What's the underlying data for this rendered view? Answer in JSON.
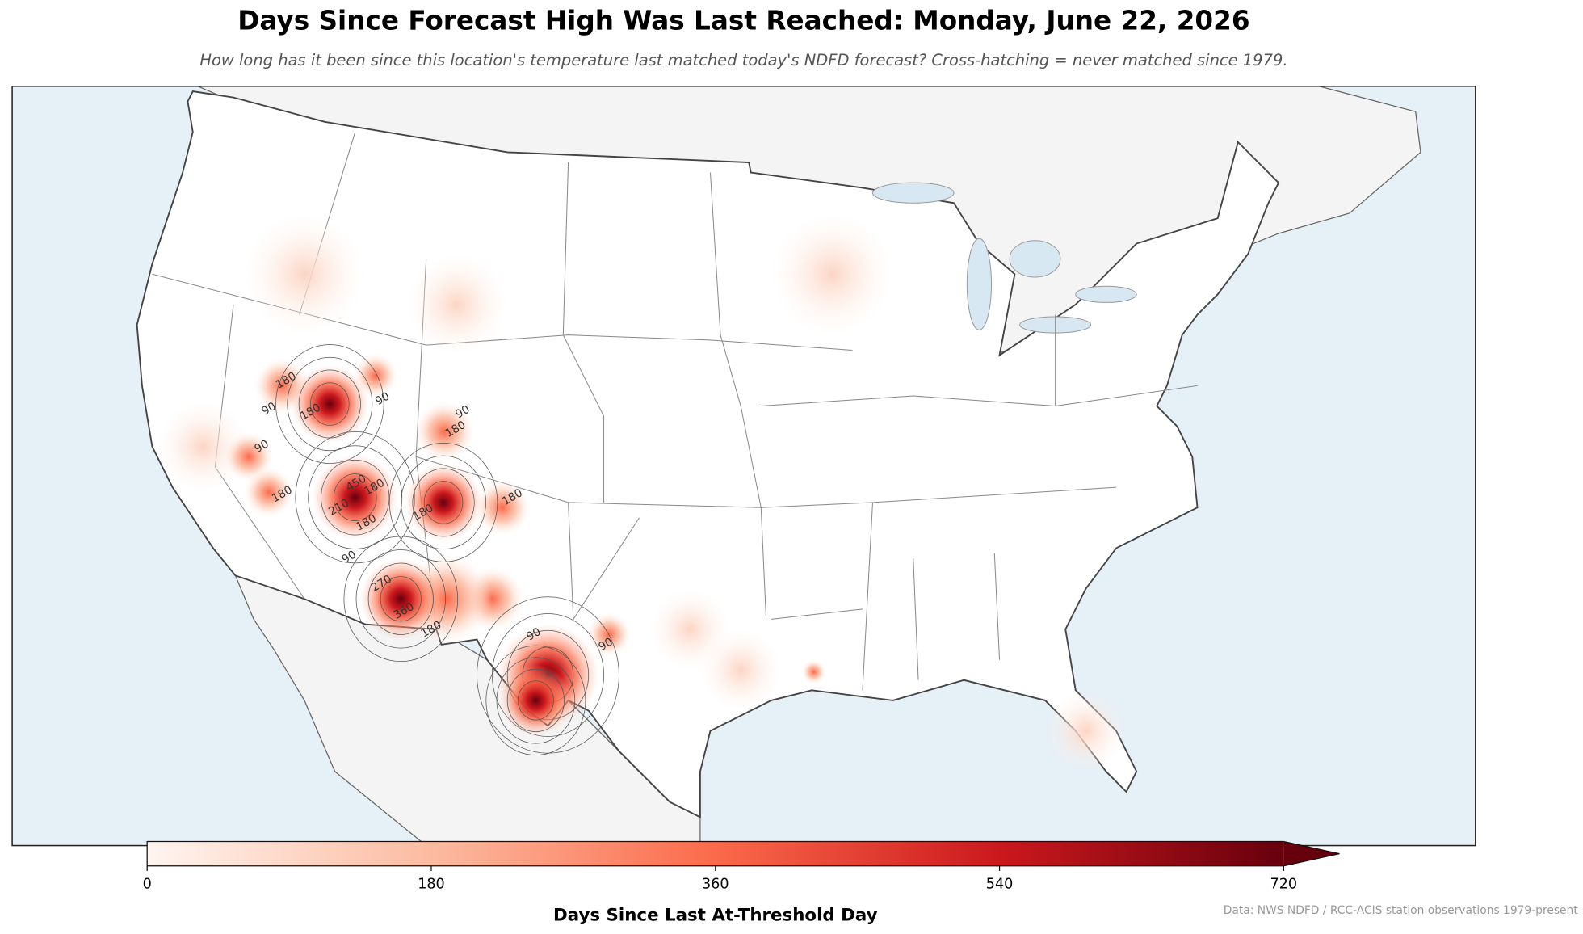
{
  "title": "Days Since Forecast High Was Last Reached: Monday, June 22, 2026",
  "subtitle": "How long has it been since this location's temperature last matched today's NDFD forecast? Cross-hatching = never matched since 1979.",
  "map": {
    "contour_labels": [
      "180",
      "90",
      "180",
      "90",
      "90",
      "180",
      "90",
      "180",
      "450",
      "180",
      "210",
      "180",
      "180",
      "180",
      "90",
      "270",
      "360",
      "180",
      "90",
      "90"
    ]
  },
  "colorbar": {
    "label": "Days Since Last At-Threshold Day",
    "lim": [
      0,
      720
    ],
    "ticks": [
      0,
      180,
      360,
      540,
      720
    ],
    "extend": "max",
    "colors": [
      "#fff5f0",
      "#fcbba1",
      "#fb6a4a",
      "#cb181d",
      "#67000d"
    ]
  },
  "source": "Data: NWS NDFD / RCC-ACIS station observations 1979-present"
}
